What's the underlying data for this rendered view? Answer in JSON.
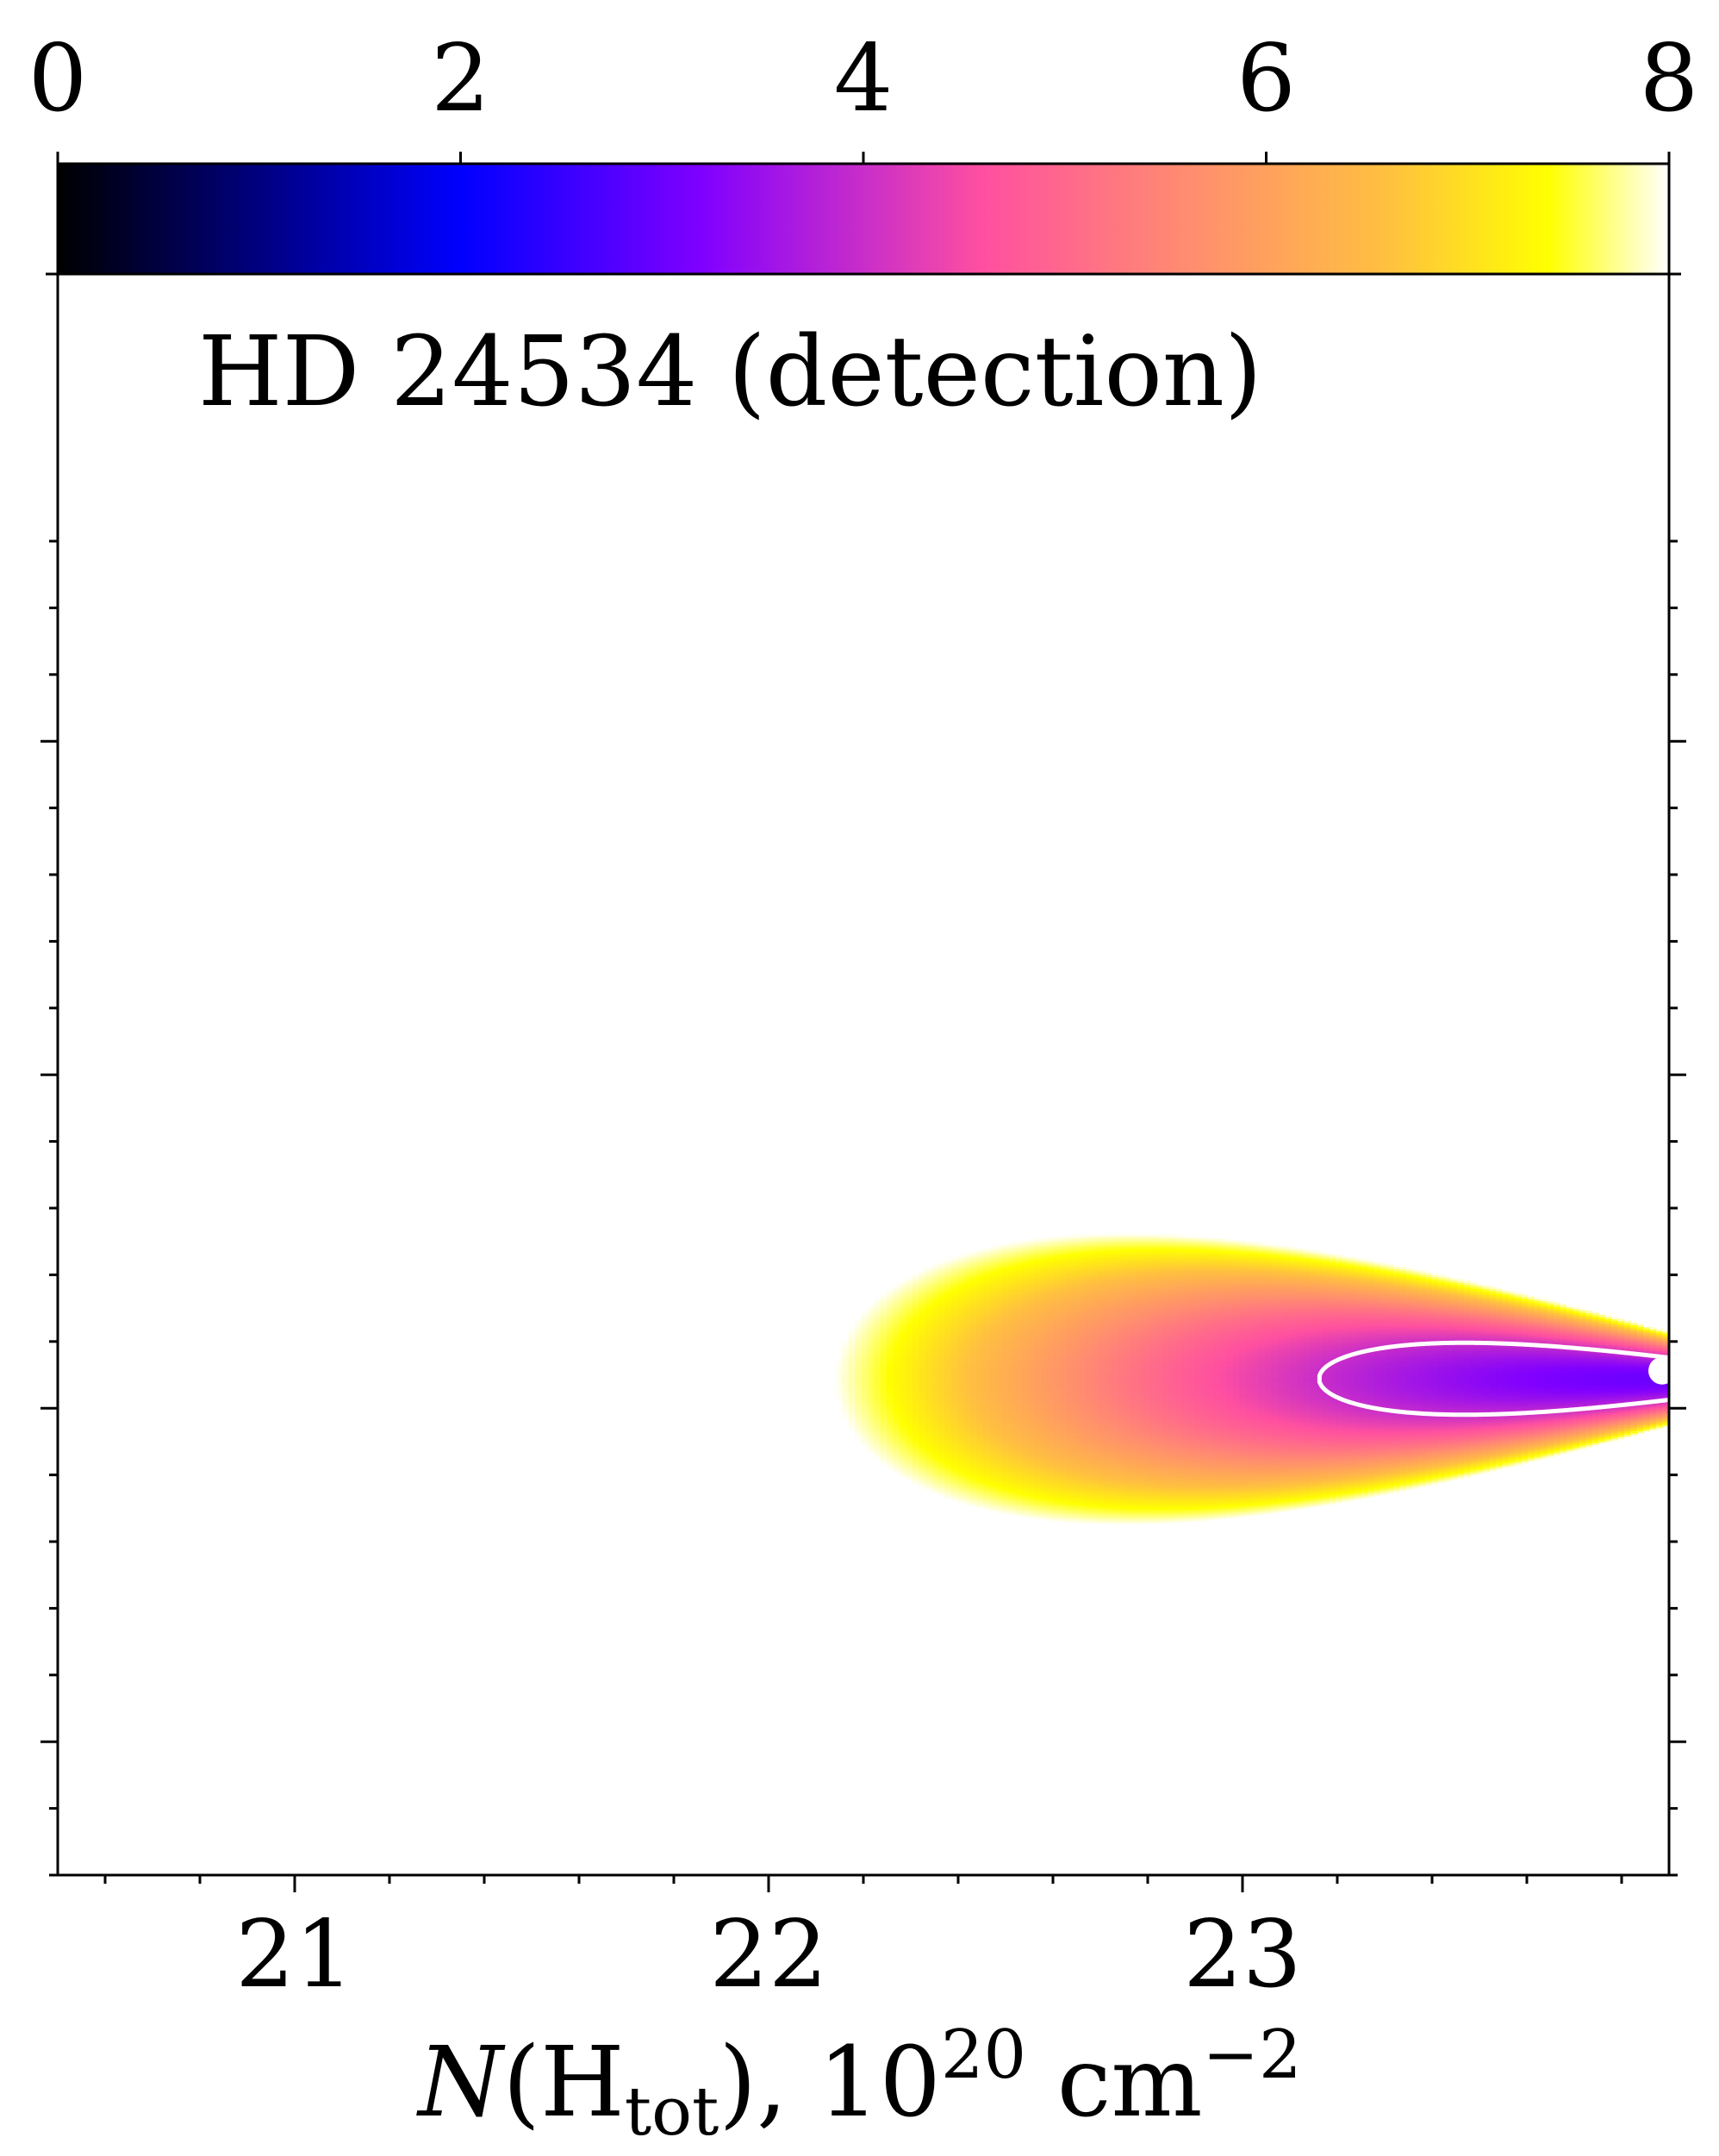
{
  "chart_data": {
    "type": "heatmap",
    "annotation": "HD 24534 (detection)",
    "xlabel": {
      "symbol": "N",
      "open": "(",
      "element": "H",
      "subscript": "tot",
      "close": "), ",
      "unit_base": "10",
      "unit_exp": "20",
      "unit": " cm",
      "unit_tail_exp": "−2"
    },
    "ylabel": "",
    "xlim": [
      20.5,
      23.9
    ],
    "ylim": [
      0,
      1
    ],
    "x_ticks": [
      21,
      22,
      23
    ],
    "x_tick_labels": [
      "21",
      "22",
      "23"
    ],
    "x_minor_step": 0.2,
    "y_show_tick_labels": false,
    "colorbar": {
      "range": [
        0,
        8
      ],
      "ticks": [
        0,
        2,
        4,
        6,
        8
      ],
      "tick_labels": [
        "0",
        "2",
        "4",
        "6",
        "8"
      ],
      "colormap": "gnuplot2",
      "stops": [
        {
          "v": 0,
          "color": "#000000"
        },
        {
          "v": 2,
          "color": "#0000ff"
        },
        {
          "v": 3.2,
          "color": "#8000ff"
        },
        {
          "v": 4.6,
          "color": "#ff50a0"
        },
        {
          "v": 5.6,
          "color": "#ff8c70"
        },
        {
          "v": 6.6,
          "color": "#ffc040"
        },
        {
          "v": 7.4,
          "color": "#ffff00"
        },
        {
          "v": 8,
          "color": "#ffffff"
        }
      ]
    },
    "surface": {
      "description": "Δχ² surface; values above 8 shown white",
      "minimum": {
        "x": 23.88,
        "y": 0.31,
        "value": 3.0
      },
      "contour_level": 4.0
    },
    "best_fit_point": {
      "x": 23.9,
      "y": 0.315,
      "color": "#ffffff"
    },
    "contour_color": "#ffffff"
  }
}
